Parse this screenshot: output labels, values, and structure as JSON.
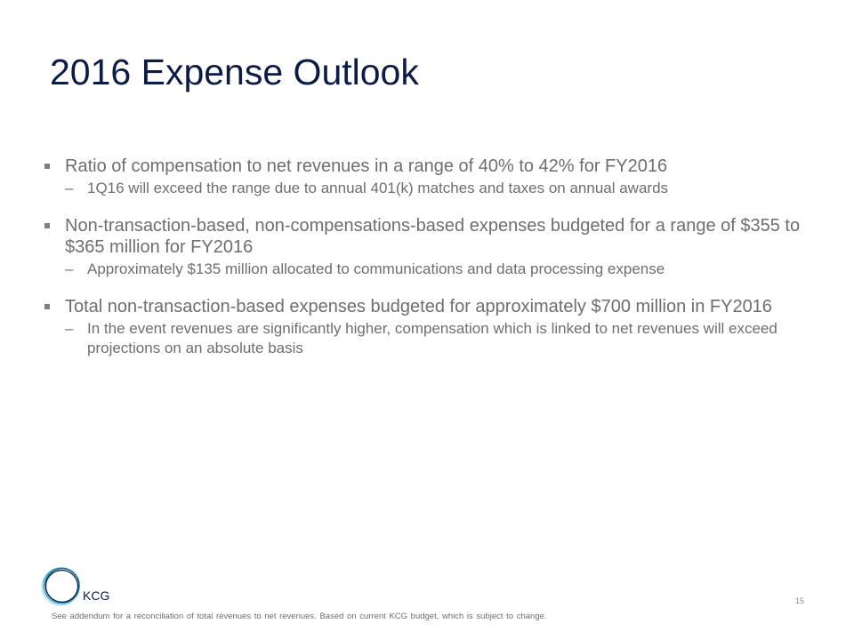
{
  "slide": {
    "title": "2016 Expense Outlook",
    "page_number": "15",
    "footnote": "See addendum for a reconciliation of total revenues to net revenues. Based on current KCG budget, which is subject to change."
  },
  "logo": {
    "text": "KCG",
    "icon": "kcg-ring-logo",
    "colors": [
      "#0c1c47",
      "#1f6f93",
      "#3fa9c9",
      "#8fd3e6"
    ]
  },
  "bullets": [
    {
      "text": "Ratio of compensation to net revenues in a range of 40% to 42% for FY2016",
      "sub": [
        "1Q16 will exceed the range due to annual 401(k) matches and taxes on annual awards"
      ]
    },
    {
      "text": "Non-transaction-based, non-compensations-based expenses budgeted for a range of $355 to $365 million for FY2016",
      "sub": [
        "Approximately $135 million allocated to communications and data processing expense"
      ]
    },
    {
      "text": "Total non-transaction-based expenses budgeted for approximately $700 million in FY2016",
      "sub": [
        "In the event revenues are significantly higher, compensation which is linked to net revenues will exceed projections on an absolute basis"
      ]
    }
  ],
  "colors": {
    "title": "#0c1c47",
    "body_text": "#6d6e71",
    "bullet_marker": "#7f7f7f"
  }
}
